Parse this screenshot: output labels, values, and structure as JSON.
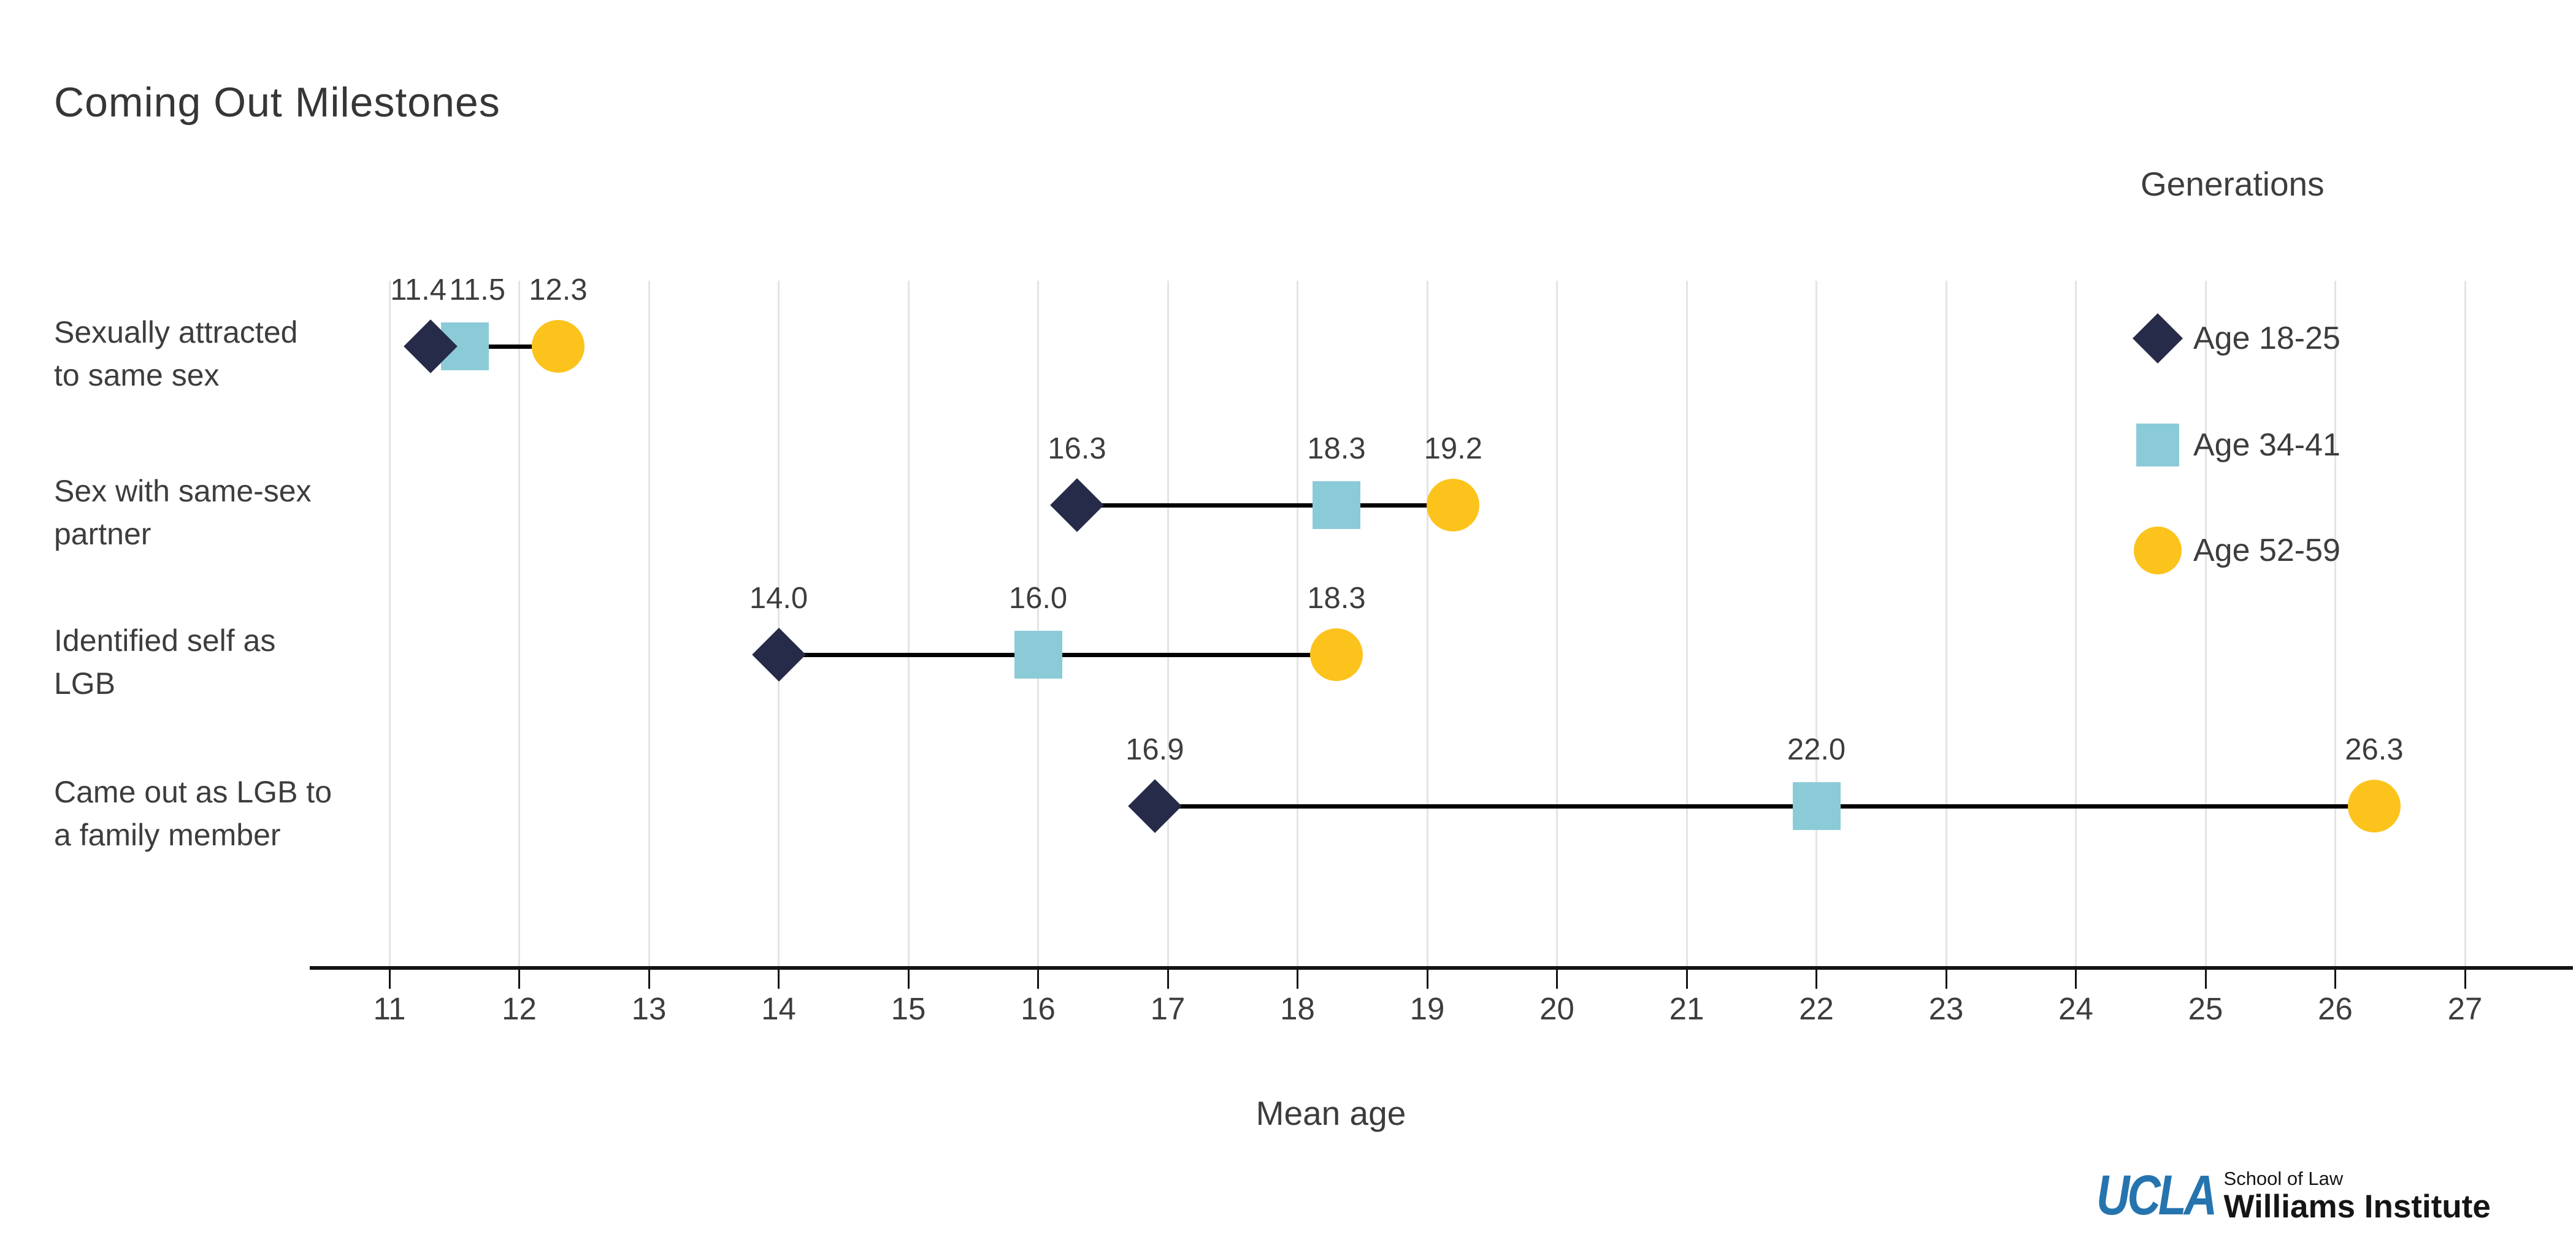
{
  "chart_data": {
    "type": "scatter",
    "variant": "dumbbell-dot-plot",
    "title": "Coming Out Milestones",
    "xlabel": "Mean age",
    "ylabel": "",
    "xlim": [
      10.4,
      27.8
    ],
    "x_ticks": [
      11,
      12,
      13,
      14,
      15,
      16,
      17,
      18,
      19,
      20,
      21,
      22,
      23,
      24,
      25,
      26,
      27
    ],
    "grid": "vertical",
    "legend": {
      "title": "Generations",
      "position": "top-right"
    },
    "categories": [
      "Sexually attracted to same sex",
      "Sex with same-sex partner",
      "Identified self as LGB",
      "Came out as LGB to a family member"
    ],
    "category_lines": [
      [
        "Sexually attracted",
        "to same sex"
      ],
      [
        "Sex with same-sex",
        "partner"
      ],
      [
        "Identified self as",
        "LGB"
      ],
      [
        "Came out as LGB to",
        "a family member"
      ]
    ],
    "series": [
      {
        "name": "Age 18-25",
        "marker": "diamond",
        "color": "#262B49",
        "values": [
          11.4,
          16.3,
          14.0,
          16.9
        ]
      },
      {
        "name": "Age 34-41",
        "marker": "square",
        "color": "#8BCBD7",
        "values": [
          11.5,
          18.3,
          16.0,
          22.0
        ]
      },
      {
        "name": "Age 52-59",
        "marker": "circle",
        "color": "#FCC31D",
        "values": [
          12.3,
          19.2,
          18.3,
          26.3
        ]
      }
    ],
    "value_labels": [
      [
        "11.4",
        "11.5",
        "12.3"
      ],
      [
        "16.3",
        "18.3",
        "19.2"
      ],
      [
        "14.0",
        "16.0",
        "18.3"
      ],
      [
        "16.9",
        "22.0",
        "26.3"
      ]
    ]
  },
  "colors": {
    "background": "#FFFFFF",
    "gridline": "#E4E4E4",
    "axis": "#141414",
    "connector": "#000000",
    "text": "#3D3D3D",
    "title_text": "#363636",
    "ucla_blue": "#2674AE"
  },
  "branding": {
    "ucla": "UCLA",
    "school": "School of Law",
    "institute": "Williams Institute"
  }
}
